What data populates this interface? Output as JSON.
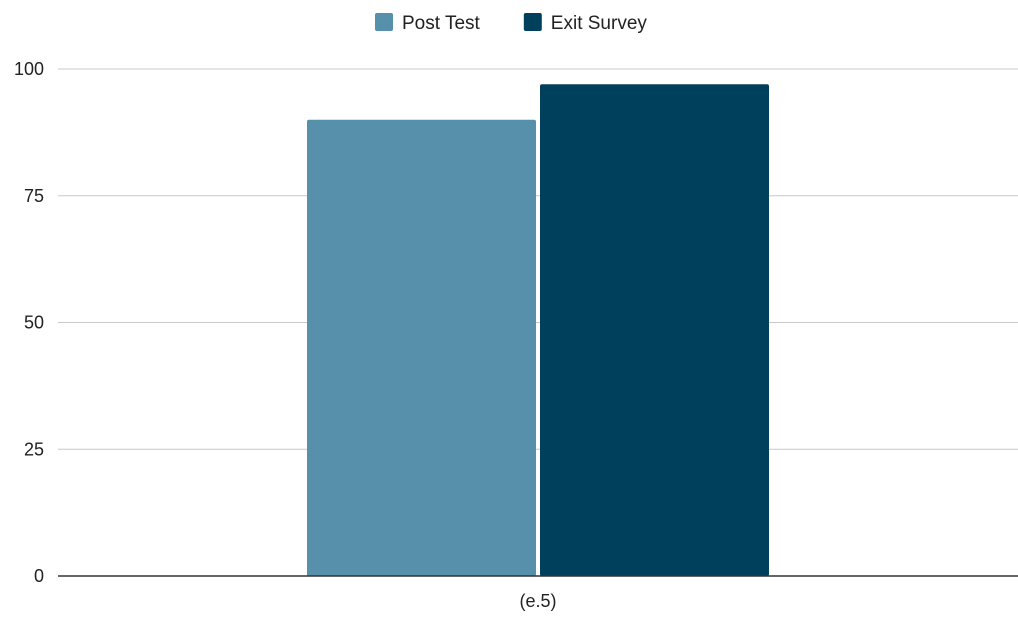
{
  "chart_data": {
    "type": "bar",
    "categories": [
      "(e.5)"
    ],
    "series": [
      {
        "name": "Post Test",
        "values": [
          90
        ],
        "color": "#5790ab"
      },
      {
        "name": "Exit Survey",
        "values": [
          97
        ],
        "color": "#01405c"
      }
    ],
    "ylim": [
      0,
      100
    ],
    "yticks": [
      0,
      25,
      50,
      75,
      100
    ],
    "grid": true,
    "legend_position": "top-center",
    "title": "",
    "xlabel": "",
    "ylabel": ""
  }
}
